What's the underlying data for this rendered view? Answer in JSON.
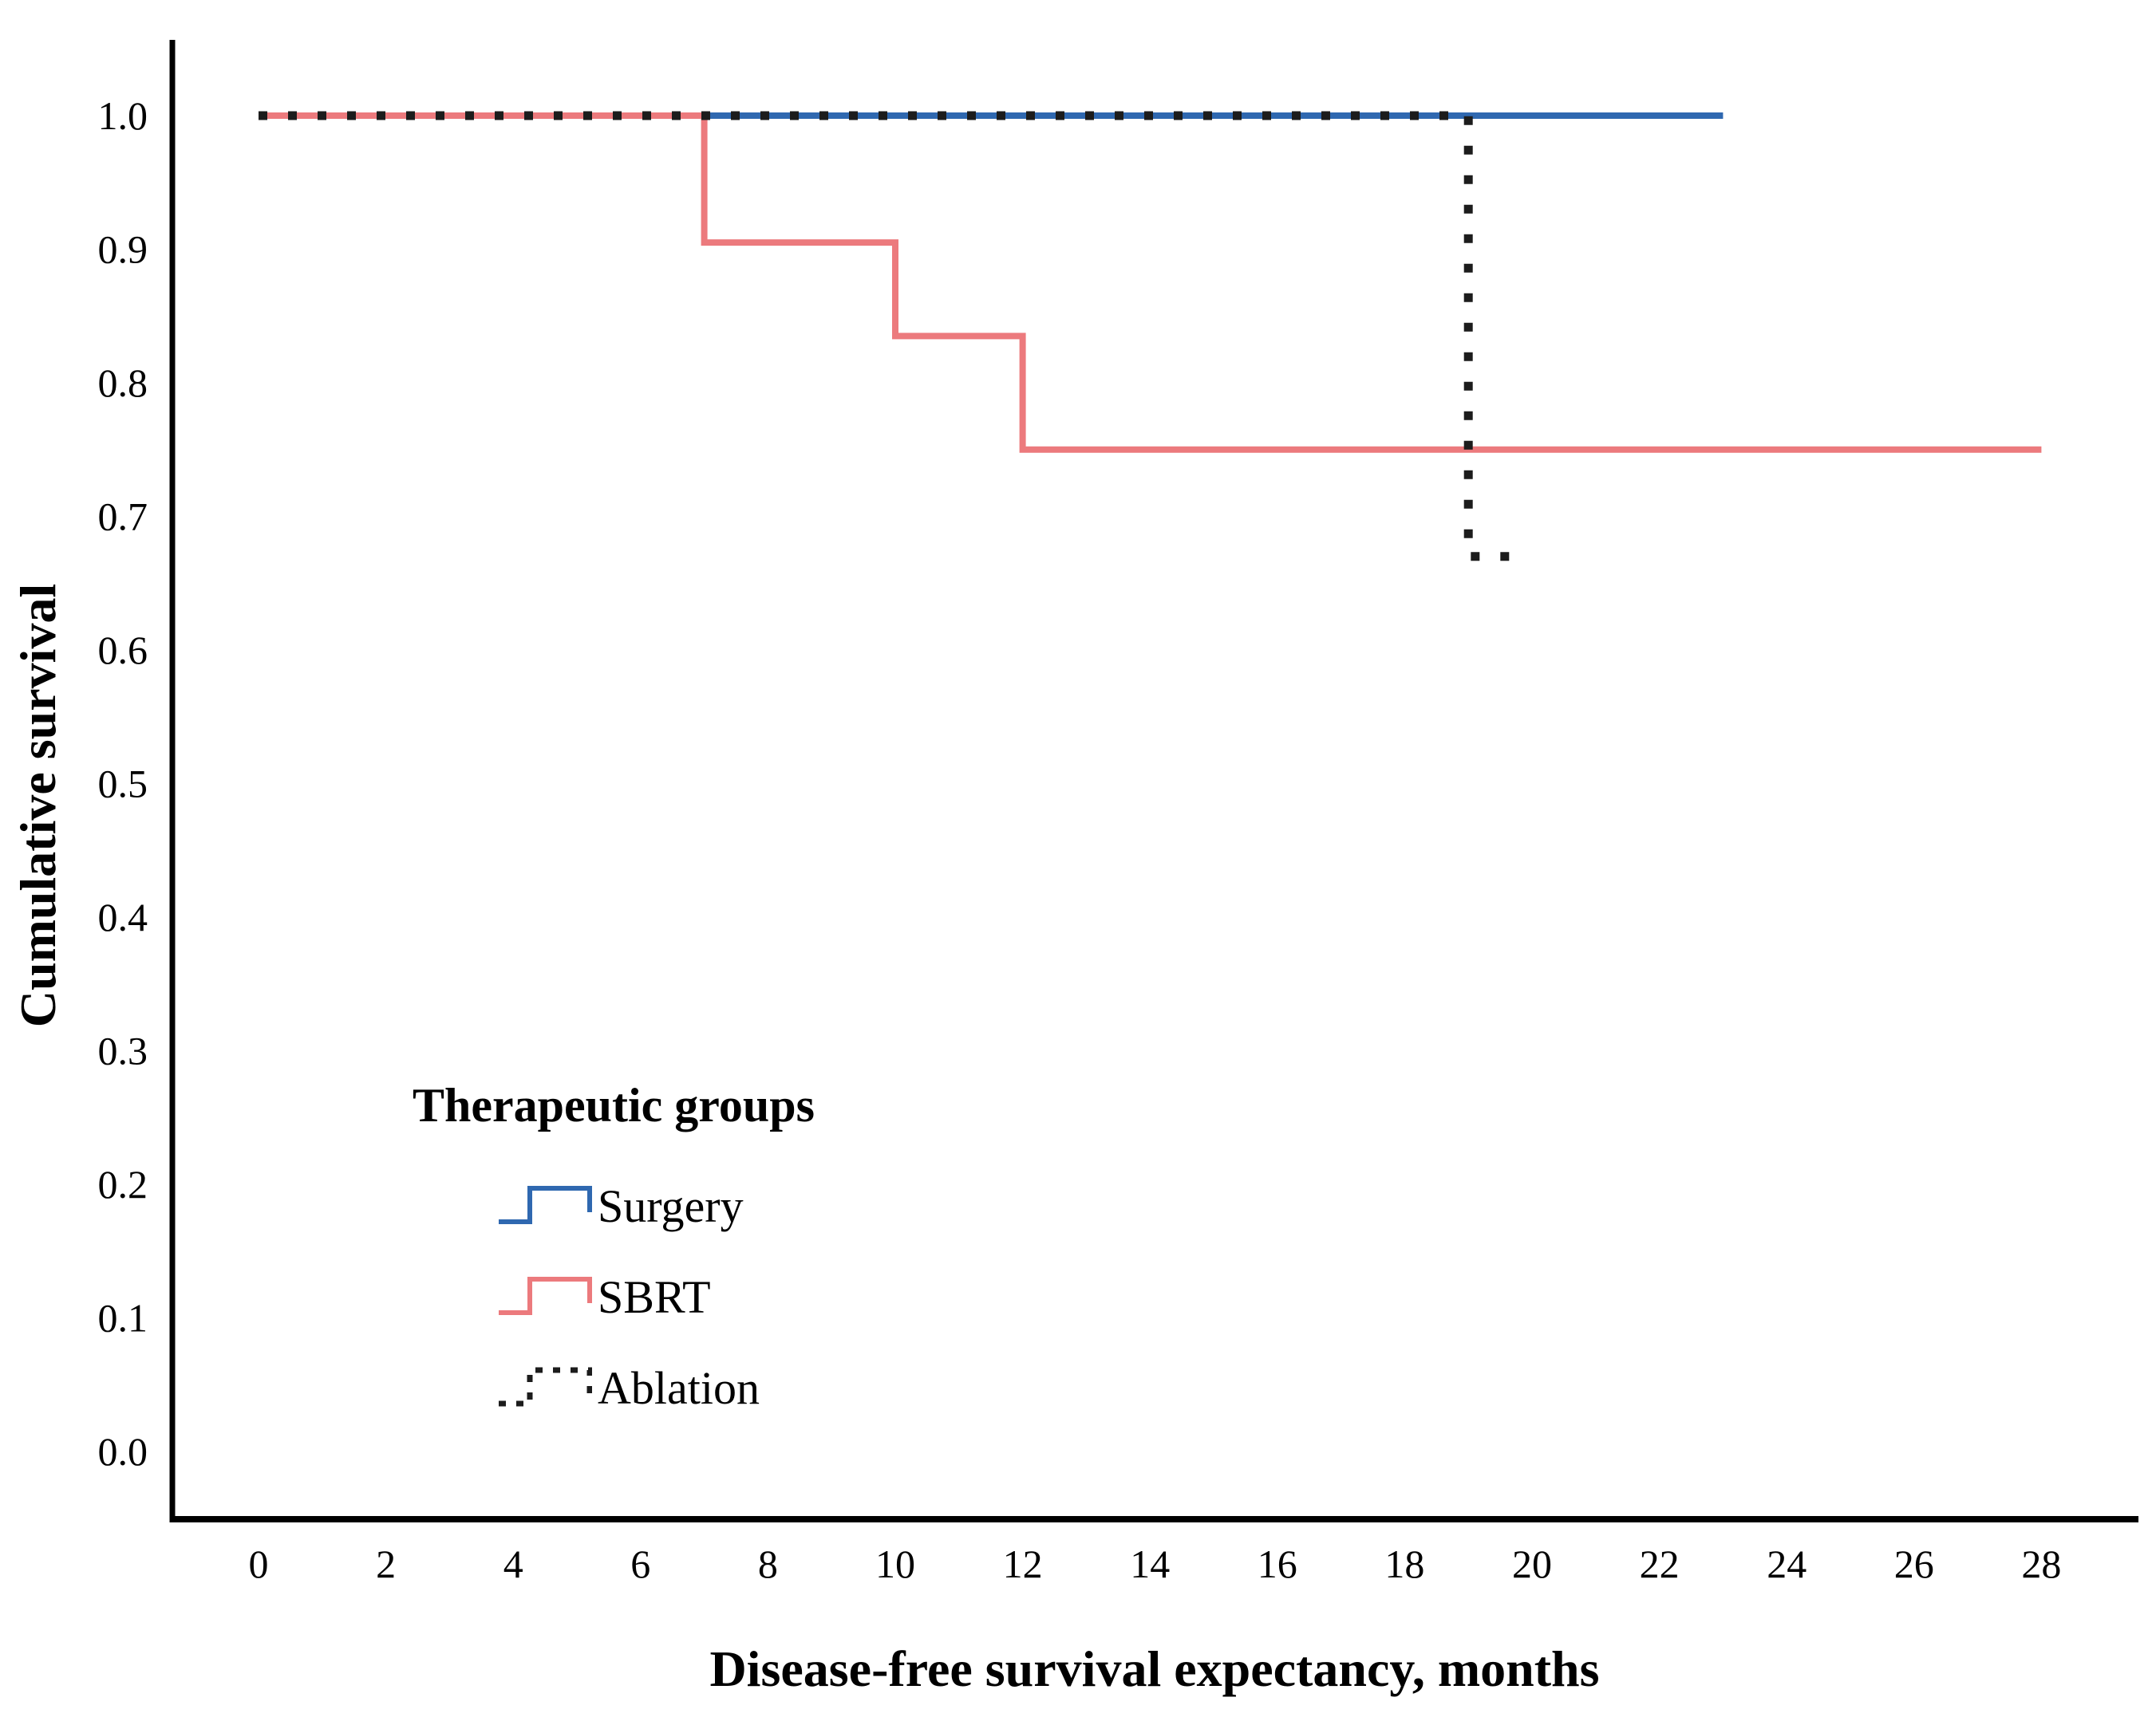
{
  "figure": {
    "type_note": "Kaplan-Meier cumulative survival plot"
  },
  "legend": {
    "title": "Therapeutic groups",
    "items": [
      {
        "label": "Surgery"
      },
      {
        "label": "SBRT"
      },
      {
        "label": "Ablation"
      }
    ]
  },
  "chart_data": {
    "type": "line",
    "subtype": "kaplan-meier-step",
    "title": "",
    "xlabel": "Disease-free survival expectancy, months",
    "ylabel": "Cumulative survival",
    "xlim": [
      0,
      28
    ],
    "ylim": [
      0.0,
      1.0
    ],
    "x_ticks": [
      0,
      2,
      4,
      6,
      8,
      10,
      12,
      14,
      16,
      18,
      20,
      22,
      24,
      26,
      28
    ],
    "y_tick_labels": [
      "1.0",
      "0.9",
      "0.8",
      "0.7",
      "0.6",
      "0.5",
      "0.4",
      "0.3",
      "0.2",
      "0.1",
      "0.0"
    ],
    "grid": false,
    "legend_position": "inside lower-left",
    "series": [
      {
        "name": "Surgery",
        "color": "#2f68b0",
        "line_style": "solid",
        "points": [
          [
            0,
            1.0
          ],
          [
            23,
            1.0
          ]
        ]
      },
      {
        "name": "SBRT",
        "color": "#ec7a7d",
        "line_style": "solid",
        "points": [
          [
            0,
            1.0
          ],
          [
            7,
            1.0
          ],
          [
            7,
            0.905
          ],
          [
            10,
            0.905
          ],
          [
            10,
            0.835
          ],
          [
            12,
            0.835
          ],
          [
            12,
            0.75
          ],
          [
            28,
            0.75
          ]
        ]
      },
      {
        "name": "Ablation",
        "color": "#1c1c1c",
        "line_style": "dotted",
        "points": [
          [
            0,
            1.0
          ],
          [
            19,
            1.0
          ],
          [
            19,
            0.67
          ],
          [
            19.8,
            0.67
          ]
        ]
      }
    ]
  }
}
